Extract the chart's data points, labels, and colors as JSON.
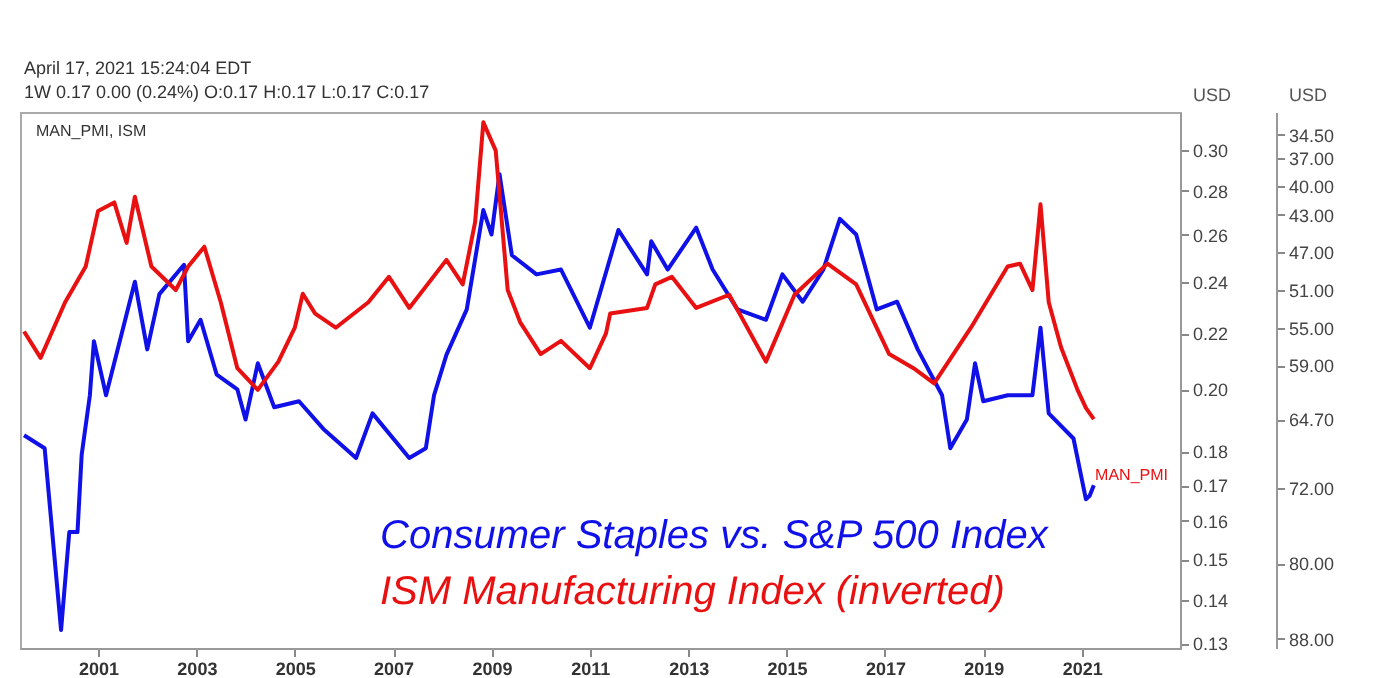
{
  "chart_data": {
    "type": "line",
    "ylabel": "USD",
    "y2label": "USD",
    "annotations": [
      "April 17, 2021 15:24:04 EDT",
      "1W  0.17  0.00 (0.24%)  O:0.17  H:0.17  L:0.17  C:0.17",
      "MAN_PMI, ISM",
      "MAN_PMI"
    ],
    "xlim": [
      "1999-06",
      "2023-01"
    ],
    "xticks": [
      "2001",
      "2003",
      "2005",
      "2007",
      "2009",
      "2011",
      "2013",
      "2015",
      "2017",
      "2019",
      "2021"
    ],
    "log": "y",
    "ylim": [
      0.129,
      0.32
    ],
    "yticks": [
      {
        "value": 0.13,
        "label": "0.13"
      },
      {
        "value": 0.14,
        "label": "0.14"
      },
      {
        "value": 0.15,
        "label": "0.15"
      },
      {
        "value": 0.16,
        "label": "0.16"
      },
      {
        "value": 0.17,
        "label": "0.17"
      },
      {
        "value": 0.18,
        "label": "0.18"
      },
      {
        "value": 0.2,
        "label": "0.20"
      },
      {
        "value": 0.22,
        "label": "0.22"
      },
      {
        "value": 0.24,
        "label": "0.24"
      },
      {
        "value": 0.26,
        "label": "0.26"
      },
      {
        "value": 0.28,
        "label": "0.28"
      },
      {
        "value": 0.3,
        "label": "0.30"
      }
    ],
    "y2lim": [
      89,
      32.1
    ],
    "y2ticks": [
      {
        "value": 34.5,
        "label": "34.50"
      },
      {
        "value": 37,
        "label": "37.00"
      },
      {
        "value": 40,
        "label": "40.00"
      },
      {
        "value": 43,
        "label": "43.00"
      },
      {
        "value": 47,
        "label": "47.00"
      },
      {
        "value": 51,
        "label": "51.00"
      },
      {
        "value": 55,
        "label": "55.00"
      },
      {
        "value": 59,
        "label": "59.00"
      },
      {
        "value": 64.7,
        "label": "64.70"
      },
      {
        "value": 72,
        "label": "72.00"
      },
      {
        "value": 80,
        "label": "80.00"
      },
      {
        "value": 88,
        "label": "88.00"
      }
    ],
    "series": [
      {
        "name": "Consumer Staples vs. S&P 500 Index",
        "color": "#1010e8",
        "x": [
          "1999-07",
          "1999-12",
          "2000-04",
          "2000-06",
          "2000-08",
          "2000-09",
          "2000-11",
          "2000-12",
          "2001-03",
          "2001-10",
          "2002-01",
          "2002-04",
          "2002-10",
          "2002-11",
          "2003-02",
          "2003-06",
          "2003-11",
          "2004-01",
          "2004-04",
          "2004-08",
          "2005-02",
          "2005-08",
          "2006-04",
          "2006-08",
          "2007-05",
          "2007-09",
          "2007-11",
          "2008-02",
          "2008-07",
          "2008-11",
          "2009-01",
          "2009-03",
          "2009-06",
          "2009-12",
          "2010-06",
          "2011-01",
          "2011-08",
          "2012-03",
          "2012-04",
          "2012-08",
          "2013-03",
          "2013-07",
          "2014-01",
          "2014-08",
          "2014-12",
          "2015-05",
          "2015-10",
          "2016-02",
          "2016-06",
          "2016-11",
          "2017-04",
          "2017-09",
          "2018-03",
          "2018-05",
          "2018-09",
          "2018-11",
          "2019-01",
          "2019-07",
          "2020-01",
          "2020-03",
          "2020-05",
          "2020-11",
          "2021-02",
          "2021-03",
          "2021-04"
        ],
        "values": [
          0.185,
          0.181,
          0.133,
          0.157,
          0.157,
          0.179,
          0.198,
          0.217,
          0.198,
          0.24,
          0.214,
          0.235,
          0.247,
          0.217,
          0.225,
          0.205,
          0.2,
          0.19,
          0.209,
          0.194,
          0.196,
          0.187,
          0.178,
          0.192,
          0.178,
          0.181,
          0.198,
          0.212,
          0.229,
          0.271,
          0.26,
          0.288,
          0.251,
          0.243,
          0.245,
          0.222,
          0.262,
          0.243,
          0.257,
          0.245,
          0.263,
          0.245,
          0.229,
          0.225,
          0.243,
          0.232,
          0.245,
          0.267,
          0.26,
          0.229,
          0.232,
          0.214,
          0.198,
          0.181,
          0.19,
          0.209,
          0.196,
          0.198,
          0.198,
          0.222,
          0.192,
          0.184,
          0.166,
          0.167,
          0.17
        ]
      },
      {
        "name": "ISM Manufacturing Index (inverted)",
        "color": "#e81010",
        "axis": "y2",
        "x": [
          "1999-07",
          "1999-11",
          "2000-05",
          "2000-10",
          "2001-01",
          "2001-05",
          "2001-08",
          "2001-10",
          "2002-02",
          "2002-08",
          "2002-11",
          "2003-03",
          "2003-07",
          "2003-11",
          "2004-04",
          "2004-09",
          "2005-01",
          "2005-03",
          "2005-06",
          "2005-11",
          "2006-07",
          "2006-12",
          "2007-05",
          "2008-02",
          "2008-06",
          "2008-09",
          "2008-11",
          "2009-02",
          "2009-05",
          "2009-08",
          "2010-01",
          "2010-06",
          "2011-01",
          "2011-05",
          "2011-06",
          "2012-03",
          "2012-05",
          "2012-09",
          "2013-03",
          "2013-11",
          "2014-08",
          "2015-03",
          "2015-11",
          "2016-06",
          "2017-02",
          "2017-08",
          "2018-01",
          "2018-10",
          "2019-07",
          "2019-10",
          "2020-01",
          "2020-03",
          "2020-05",
          "2020-08",
          "2020-12",
          "2021-02",
          "2021-04"
        ],
        "values": [
          55.4,
          58.2,
          52.3,
          48.5,
          42.6,
          41.7,
          46.0,
          41.1,
          48.5,
          51.0,
          48.5,
          46.4,
          52.3,
          59.3,
          61.6,
          58.6,
          55.0,
          51.4,
          53.5,
          55.0,
          52.3,
          49.6,
          52.9,
          47.8,
          50.4,
          43.8,
          33.2,
          36.2,
          51.0,
          54.4,
          57.8,
          56.4,
          59.3,
          55.6,
          53.5,
          52.9,
          50.4,
          49.6,
          52.9,
          51.5,
          58.6,
          51.5,
          48.2,
          50.4,
          57.8,
          59.3,
          60.9,
          55.0,
          48.5,
          48.2,
          51.0,
          41.9,
          52.3,
          57.1,
          61.6,
          63.5,
          64.7
        ]
      }
    ]
  }
}
